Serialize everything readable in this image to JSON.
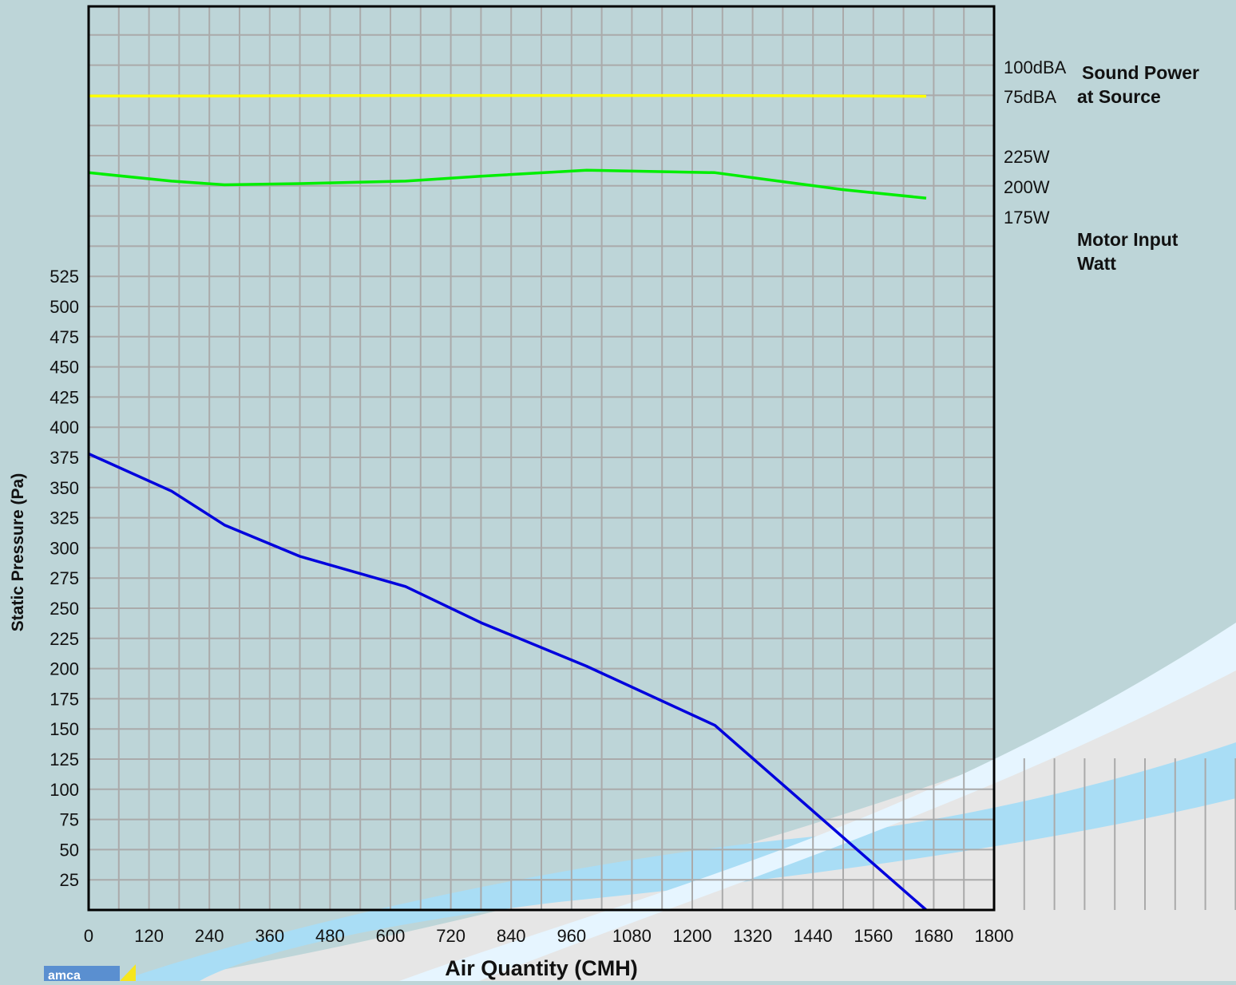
{
  "chart_data": {
    "type": "line",
    "xlabel": "Air Quantity (CMH)",
    "ylabel": "Static Pressure (Pa)",
    "xlim": [
      0,
      1800
    ],
    "ylim": [
      0,
      550
    ],
    "x_ticks": [
      "0",
      "120",
      "240",
      "360",
      "480",
      "600",
      "720",
      "840",
      "960",
      "1080",
      "1200",
      "1320",
      "1440",
      "1560",
      "1680",
      "1800"
    ],
    "y_ticks": [
      "25",
      "50",
      "75",
      "100",
      "125",
      "150",
      "175",
      "200",
      "225",
      "250",
      "275",
      "300",
      "325",
      "350",
      "375",
      "400",
      "425",
      "450",
      "475",
      "500",
      "525"
    ],
    "grid": true,
    "series": [
      {
        "axis": "static-pressure",
        "color": "#0000dd",
        "x": [
          0,
          165,
          270,
          420,
          630,
          780,
          990,
          1245,
          1665
        ],
        "y": [
          378,
          347,
          319,
          293,
          268,
          238,
          202,
          153,
          0
        ]
      },
      {
        "axis": "motor-input",
        "color": "#00ee00",
        "x": [
          0,
          165,
          270,
          420,
          630,
          780,
          990,
          1245,
          1500,
          1665
        ],
        "y": [
          211,
          204,
          201,
          202,
          204,
          208,
          213,
          211,
          197,
          190
        ]
      },
      {
        "axis": "sound-power",
        "color": "#ffff00",
        "x": [
          0,
          165,
          270,
          420,
          630,
          780,
          990,
          1245,
          1500,
          1665
        ],
        "y": [
          75.5,
          75.5,
          75.5,
          75.7,
          75.9,
          75.9,
          75.9,
          75.9,
          75.6,
          75.3
        ]
      }
    ],
    "right_axes": [
      {
        "name": "Sound Power",
        "name_line2": "at Source",
        "ticks": [
          {
            "label": "100dBA",
            "value": 100
          },
          {
            "label": "75dBA",
            "value": 75
          }
        ]
      },
      {
        "name": "Motor Input",
        "name_line2": "Watt",
        "ticks": [
          {
            "label": "225W",
            "value": 225
          },
          {
            "label": "200W",
            "value": 200
          },
          {
            "label": "175W",
            "value": 175
          }
        ]
      }
    ]
  },
  "logo": {
    "text": "amca"
  },
  "colors": {
    "panel": "#bdd5d8",
    "grid": "#aaaaaa",
    "frame": "#000000",
    "swoosh_light": "#e6f5ff",
    "swoosh_blue": "#a9ddf5",
    "gray_band": "#e6e6e6"
  }
}
